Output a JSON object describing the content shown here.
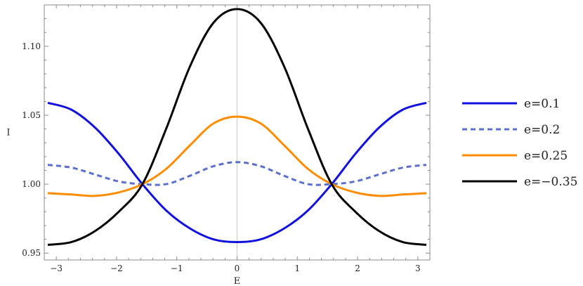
{
  "chart_data": {
    "type": "line",
    "xlabel": "E",
    "ylabel": "I",
    "xlim": [
      -3.2,
      3.2
    ],
    "ylim": [
      0.945,
      1.13
    ],
    "x_ticks": [
      -3,
      -2,
      -1,
      0,
      1,
      2,
      3
    ],
    "x_tick_labels": [
      "−3",
      "−2",
      "−1",
      "0",
      "1",
      "2",
      "3"
    ],
    "y_ticks": [
      0.95,
      1.0,
      1.05,
      1.1
    ],
    "y_tick_labels": [
      "0.95",
      "1.00",
      "1.05",
      "1.10"
    ],
    "grid": false,
    "zero_line_x": 0,
    "legend_position": "right",
    "x": [
      -3.1416,
      -2.7489,
      -2.3562,
      -1.9635,
      -1.5708,
      -1.1781,
      -0.7854,
      -0.3927,
      0.0,
      0.3927,
      0.7854,
      1.1781,
      1.5708,
      1.9635,
      2.3562,
      2.7489,
      3.1416
    ],
    "series": [
      {
        "name": "e=0.1",
        "color": "#1010e0",
        "dashed": false,
        "values": [
          1.059,
          1.054,
          1.041,
          1.022,
          1.0,
          0.981,
          0.968,
          0.96,
          0.958,
          0.96,
          0.968,
          0.981,
          1.0,
          1.022,
          1.041,
          1.054,
          1.059
        ]
      },
      {
        "name": "e=0.2",
        "color": "#5b6fd0",
        "dashed": true,
        "values": [
          1.014,
          1.012,
          1.007,
          1.002,
          1.0,
          1.0,
          1.006,
          1.013,
          1.016,
          1.013,
          1.006,
          1.0,
          1.0,
          1.002,
          1.007,
          1.012,
          1.014
        ]
      },
      {
        "name": "e=0.25",
        "color": "#ff8c00",
        "dashed": false,
        "values": [
          0.9935,
          0.9925,
          0.9915,
          0.994,
          1.0,
          1.011,
          1.028,
          1.044,
          1.049,
          1.044,
          1.028,
          1.011,
          1.0,
          0.994,
          0.9915,
          0.9925,
          0.9935
        ]
      },
      {
        "name": "e=−0.35",
        "color": "#000000",
        "dashed": false,
        "values": [
          0.956,
          0.958,
          0.966,
          0.98,
          1.0,
          1.04,
          1.085,
          1.117,
          1.127,
          1.117,
          1.085,
          1.04,
          1.0,
          0.98,
          0.966,
          0.958,
          0.956
        ]
      }
    ]
  }
}
